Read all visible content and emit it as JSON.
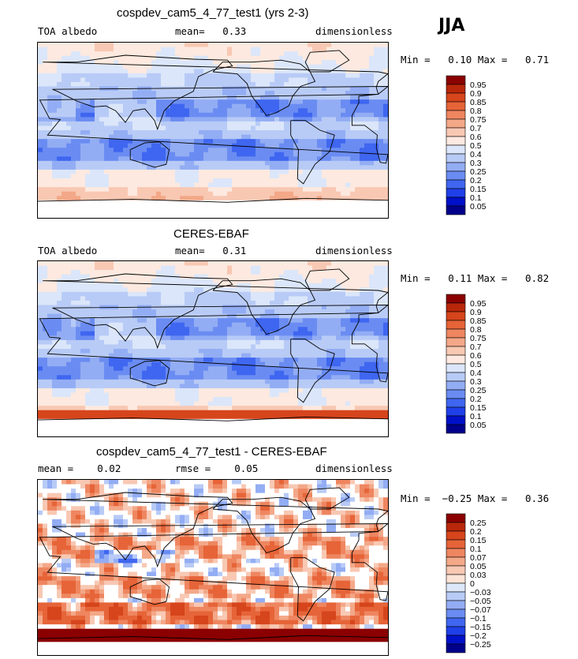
{
  "season": "JJA",
  "colors": {
    "ramp": [
      "#00008b",
      "#0010c8",
      "#1f3fe8",
      "#3f66f0",
      "#6a8cf2",
      "#93adf4",
      "#b8cbf6",
      "#dbe6fa",
      "#fde9df",
      "#f8c8b3",
      "#f3a888",
      "#ee8660",
      "#e66438",
      "#d6451c",
      "#b9270a",
      "#8b0000"
    ],
    "diff_zero": "#ffffff"
  },
  "panels": [
    {
      "title": "cospdev_cam5_4_77_test1 (yrs 2-3)",
      "left_label": "TOA albedo",
      "center_label": "mean=   0.33",
      "right_label": "dimensionless",
      "minmax": "Min =   0.10 Max =   0.71",
      "colorbar": [
        "0.95",
        "0.9",
        "0.85",
        "0.8",
        "0.75",
        "0.7",
        "0.6",
        "0.5",
        "0.4",
        "0.3",
        "0.25",
        "0.2",
        "0.15",
        "0.1",
        "0.05"
      ]
    },
    {
      "title": "CERES-EBAF",
      "left_label": "TOA albedo",
      "center_label": "mean=   0.31",
      "right_label": "dimensionless",
      "minmax": "Min =   0.11 Max =   0.82",
      "colorbar": [
        "0.95",
        "0.9",
        "0.85",
        "0.8",
        "0.75",
        "0.7",
        "0.6",
        "0.5",
        "0.4",
        "0.3",
        "0.25",
        "0.2",
        "0.15",
        "0.1",
        "0.05"
      ]
    },
    {
      "title": "cospdev_cam5_4_77_test1 - CERES-EBAF",
      "left_label": "mean =    0.02",
      "center_label": "rmse =    0.05",
      "right_label": "dimensionless",
      "minmax": "Min =  −0.25 Max =   0.36",
      "colorbar": [
        "0.25",
        "0.2",
        "0.15",
        "0.1",
        "0.07",
        "0.05",
        "0.03",
        "0",
        "−0.03",
        "−0.05",
        "−0.07",
        "−0.1",
        "−0.15",
        "−0.2",
        "−0.25"
      ]
    }
  ],
  "chart_data": [
    {
      "type": "heatmap",
      "title": "cospdev_cam5_4_77_test1 (yrs 2-3)",
      "field": "TOA albedo",
      "units": "dimensionless",
      "mean": 0.33,
      "min": 0.1,
      "max": 0.71,
      "levels": [
        0.05,
        0.1,
        0.15,
        0.2,
        0.25,
        0.3,
        0.4,
        0.5,
        0.6,
        0.7,
        0.75,
        0.8,
        0.85,
        0.9,
        0.95
      ]
    },
    {
      "type": "heatmap",
      "title": "CERES-EBAF",
      "field": "TOA albedo",
      "units": "dimensionless",
      "mean": 0.31,
      "min": 0.11,
      "max": 0.82,
      "levels": [
        0.05,
        0.1,
        0.15,
        0.2,
        0.25,
        0.3,
        0.4,
        0.5,
        0.6,
        0.7,
        0.75,
        0.8,
        0.85,
        0.9,
        0.95
      ]
    },
    {
      "type": "heatmap",
      "title": "cospdev_cam5_4_77_test1 - CERES-EBAF",
      "units": "dimensionless",
      "mean": 0.02,
      "rmse": 0.05,
      "min": -0.25,
      "max": 0.36,
      "levels": [
        -0.25,
        -0.2,
        -0.15,
        -0.1,
        -0.07,
        -0.05,
        -0.03,
        0,
        0.03,
        0.05,
        0.07,
        0.1,
        0.15,
        0.2,
        0.25
      ]
    }
  ]
}
